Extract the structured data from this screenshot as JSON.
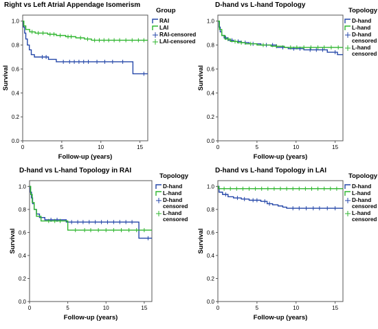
{
  "figure": {
    "colors": {
      "blue": "#2346a8",
      "green": "#2db52d",
      "frame": "#555555"
    }
  },
  "chart_data": [
    {
      "type": "line",
      "title": "Right vs Left Atrial Appendage Isomerism",
      "xlabel": "Follow-up (years)",
      "ylabel": "Survival",
      "xlim": [
        0,
        16
      ],
      "ylim": [
        0,
        1.05
      ],
      "xticks": [
        0,
        5,
        10,
        15
      ],
      "yticks": [
        "0.0",
        "0.2",
        "0.4",
        "0.6",
        "0.8",
        "1.0"
      ],
      "legend": {
        "title": "Group",
        "position": "right",
        "entries": [
          {
            "label": "RAI",
            "color": "#2346a8",
            "kind": "line"
          },
          {
            "label": "LAI",
            "color": "#2db52d",
            "kind": "line"
          },
          {
            "label": "RAI-censored",
            "color": "#2346a8",
            "kind": "censor"
          },
          {
            "label": "LAI-censored",
            "color": "#2db52d",
            "kind": "censor"
          }
        ]
      },
      "series": [
        {
          "name": "RAI",
          "color": "#2346a8",
          "steps": [
            [
              0,
              1.0
            ],
            [
              0.1,
              0.95
            ],
            [
              0.25,
              0.9
            ],
            [
              0.4,
              0.85
            ],
            [
              0.6,
              0.8
            ],
            [
              0.85,
              0.76
            ],
            [
              1.1,
              0.72
            ],
            [
              1.5,
              0.7
            ],
            [
              3.3,
              0.68
            ],
            [
              4.3,
              0.66
            ],
            [
              14.1,
              0.56
            ],
            [
              16,
              0.56
            ]
          ],
          "censored": [
            2.5,
            3.0,
            5.2,
            6.0,
            6.6,
            7.2,
            7.8,
            8.4,
            9.5,
            10.5,
            11.5,
            12.8,
            15.5
          ]
        },
        {
          "name": "LAI",
          "color": "#2db52d",
          "steps": [
            [
              0,
              1.0
            ],
            [
              0.15,
              0.96
            ],
            [
              0.4,
              0.93
            ],
            [
              0.9,
              0.91
            ],
            [
              1.6,
              0.9
            ],
            [
              3.2,
              0.89
            ],
            [
              4.3,
              0.88
            ],
            [
              5.5,
              0.87
            ],
            [
              6.8,
              0.86
            ],
            [
              7.9,
              0.85
            ],
            [
              8.8,
              0.84
            ],
            [
              16,
              0.84
            ]
          ],
          "censored": [
            1.2,
            2.0,
            2.6,
            3.5,
            4.0,
            4.8,
            5.8,
            6.2,
            7.4,
            8.3,
            9.2,
            9.8,
            10.4,
            11.0,
            11.7,
            12.4,
            13.2,
            14.0,
            14.8,
            15.5
          ]
        }
      ]
    },
    {
      "type": "line",
      "title": "D-hand vs L-hand Topology",
      "xlabel": "Follow-up (years)",
      "ylabel": "Survival",
      "xlim": [
        0,
        16
      ],
      "ylim": [
        0,
        1.05
      ],
      "xticks": [
        0,
        5,
        10,
        15
      ],
      "yticks": [
        "0.0",
        "0.2",
        "0.4",
        "0.6",
        "0.8",
        "1.0"
      ],
      "legend": {
        "title": "Topology",
        "position": "right",
        "entries": [
          {
            "label": "D-hand",
            "color": "#2346a8",
            "kind": "line"
          },
          {
            "label": "L-hand",
            "color": "#2db52d",
            "kind": "line"
          },
          {
            "label": "D-hand censored",
            "color": "#2346a8",
            "kind": "censor"
          },
          {
            "label": "L-hand censored",
            "color": "#2db52d",
            "kind": "censor"
          }
        ]
      },
      "series": [
        {
          "name": "D-hand",
          "color": "#2346a8",
          "steps": [
            [
              0,
              1.0
            ],
            [
              0.15,
              0.95
            ],
            [
              0.3,
              0.91
            ],
            [
              0.5,
              0.88
            ],
            [
              0.8,
              0.86
            ],
            [
              1.3,
              0.84
            ],
            [
              2.0,
              0.83
            ],
            [
              3.0,
              0.82
            ],
            [
              4.0,
              0.81
            ],
            [
              5.5,
              0.8
            ],
            [
              7.5,
              0.78
            ],
            [
              9.0,
              0.77
            ],
            [
              11.0,
              0.76
            ],
            [
              14.0,
              0.74
            ],
            [
              15.3,
              0.72
            ],
            [
              16,
              0.72
            ]
          ],
          "censored": [
            1.0,
            1.8,
            2.6,
            3.5,
            4.5,
            6.2,
            7.0,
            8.3,
            9.7,
            10.5,
            11.8,
            12.6,
            13.4,
            15.0
          ]
        },
        {
          "name": "L-hand",
          "color": "#2db52d",
          "steps": [
            [
              0,
              1.0
            ],
            [
              0.2,
              0.93
            ],
            [
              0.5,
              0.88
            ],
            [
              0.9,
              0.85
            ],
            [
              1.6,
              0.83
            ],
            [
              2.5,
              0.82
            ],
            [
              3.5,
              0.81
            ],
            [
              5.0,
              0.8
            ],
            [
              6.8,
              0.79
            ],
            [
              8.5,
              0.78
            ],
            [
              16,
              0.78
            ]
          ],
          "censored": [
            1.3,
            2.2,
            3.0,
            4.2,
            5.8,
            7.5,
            9.3,
            10.1,
            11.0,
            11.9,
            12.8,
            13.6,
            14.5,
            15.4
          ]
        }
      ]
    },
    {
      "type": "line",
      "title": "D-hand vs L-hand Topology in RAI",
      "xlabel": "Follow-up (years)",
      "ylabel": "Survival",
      "xlim": [
        0,
        16
      ],
      "ylim": [
        0,
        1.05
      ],
      "xticks": [
        0,
        5,
        10,
        15
      ],
      "yticks": [
        "0.0",
        "0.2",
        "0.4",
        "0.6",
        "0.8",
        "1.0"
      ],
      "legend": {
        "title": "Topology",
        "position": "right",
        "entries": [
          {
            "label": "D-hand",
            "color": "#2346a8",
            "kind": "line"
          },
          {
            "label": "L-hand",
            "color": "#2db52d",
            "kind": "line"
          },
          {
            "label": "D-hand censored",
            "color": "#2346a8",
            "kind": "censor"
          },
          {
            "label": "L-hand censored",
            "color": "#2db52d",
            "kind": "censor"
          }
        ]
      },
      "series": [
        {
          "name": "D-hand",
          "color": "#2346a8",
          "steps": [
            [
              0,
              1.0
            ],
            [
              0.1,
              0.95
            ],
            [
              0.25,
              0.9
            ],
            [
              0.4,
              0.85
            ],
            [
              0.6,
              0.8
            ],
            [
              0.9,
              0.76
            ],
            [
              1.3,
              0.73
            ],
            [
              2.0,
              0.71
            ],
            [
              4.8,
              0.69
            ],
            [
              14.3,
              0.55
            ],
            [
              16,
              0.55
            ]
          ],
          "censored": [
            2.8,
            3.6,
            5.5,
            6.3,
            7.0,
            7.8,
            8.6,
            9.4,
            10.2,
            11.0,
            11.8,
            12.6,
            13.4,
            15.5
          ]
        },
        {
          "name": "L-hand",
          "color": "#2db52d",
          "steps": [
            [
              0,
              1.0
            ],
            [
              0.15,
              0.93
            ],
            [
              0.35,
              0.86
            ],
            [
              0.6,
              0.8
            ],
            [
              0.9,
              0.74
            ],
            [
              1.5,
              0.7
            ],
            [
              5.0,
              0.62
            ],
            [
              16,
              0.62
            ]
          ],
          "censored": [
            2.5,
            3.3,
            4.0,
            6.0,
            7.2,
            8.0,
            9.0,
            10.0,
            11.0,
            12.0,
            13.0,
            14.0,
            15.0
          ]
        }
      ]
    },
    {
      "type": "line",
      "title": "D-hand vs L-hand Topology in LAI",
      "xlabel": "Follow-up (years)",
      "ylabel": "Survival",
      "xlim": [
        0,
        16
      ],
      "ylim": [
        0,
        1.05
      ],
      "xticks": [
        0,
        5,
        10,
        15
      ],
      "yticks": [
        "0.0",
        "0.2",
        "0.4",
        "0.6",
        "0.8",
        "1.0"
      ],
      "legend": {
        "title": "Topology",
        "position": "right",
        "entries": [
          {
            "label": "D-hand",
            "color": "#2346a8",
            "kind": "line"
          },
          {
            "label": "L-hand",
            "color": "#2db52d",
            "kind": "line"
          },
          {
            "label": "D-hand censored",
            "color": "#2346a8",
            "kind": "censor"
          },
          {
            "label": "L-hand censored",
            "color": "#2db52d",
            "kind": "censor"
          }
        ]
      },
      "series": [
        {
          "name": "D-hand",
          "color": "#2346a8",
          "steps": [
            [
              0,
              1.0
            ],
            [
              0.15,
              0.95
            ],
            [
              0.6,
              0.93
            ],
            [
              1.3,
              0.91
            ],
            [
              2.0,
              0.9
            ],
            [
              3.0,
              0.89
            ],
            [
              4.0,
              0.88
            ],
            [
              5.5,
              0.87
            ],
            [
              6.3,
              0.85
            ],
            [
              7.0,
              0.84
            ],
            [
              7.7,
              0.83
            ],
            [
              8.3,
              0.82
            ],
            [
              8.8,
              0.81
            ],
            [
              16,
              0.81
            ]
          ],
          "censored": [
            1.0,
            2.5,
            3.4,
            4.5,
            5.0,
            6.0,
            6.6,
            9.6,
            10.4,
            11.3,
            12.2,
            13.0,
            14.0,
            15.0
          ]
        },
        {
          "name": "L-hand",
          "color": "#2db52d",
          "steps": [
            [
              0,
              1.0
            ],
            [
              0.1,
              0.98
            ],
            [
              16,
              0.98
            ]
          ],
          "censored": [
            0.8,
            1.6,
            2.4,
            3.2,
            4.0,
            4.8,
            5.6,
            6.4,
            7.2,
            8.0,
            8.8,
            9.6,
            10.4,
            11.2,
            12.0,
            12.8,
            13.6,
            14.4,
            15.2
          ]
        }
      ]
    }
  ]
}
